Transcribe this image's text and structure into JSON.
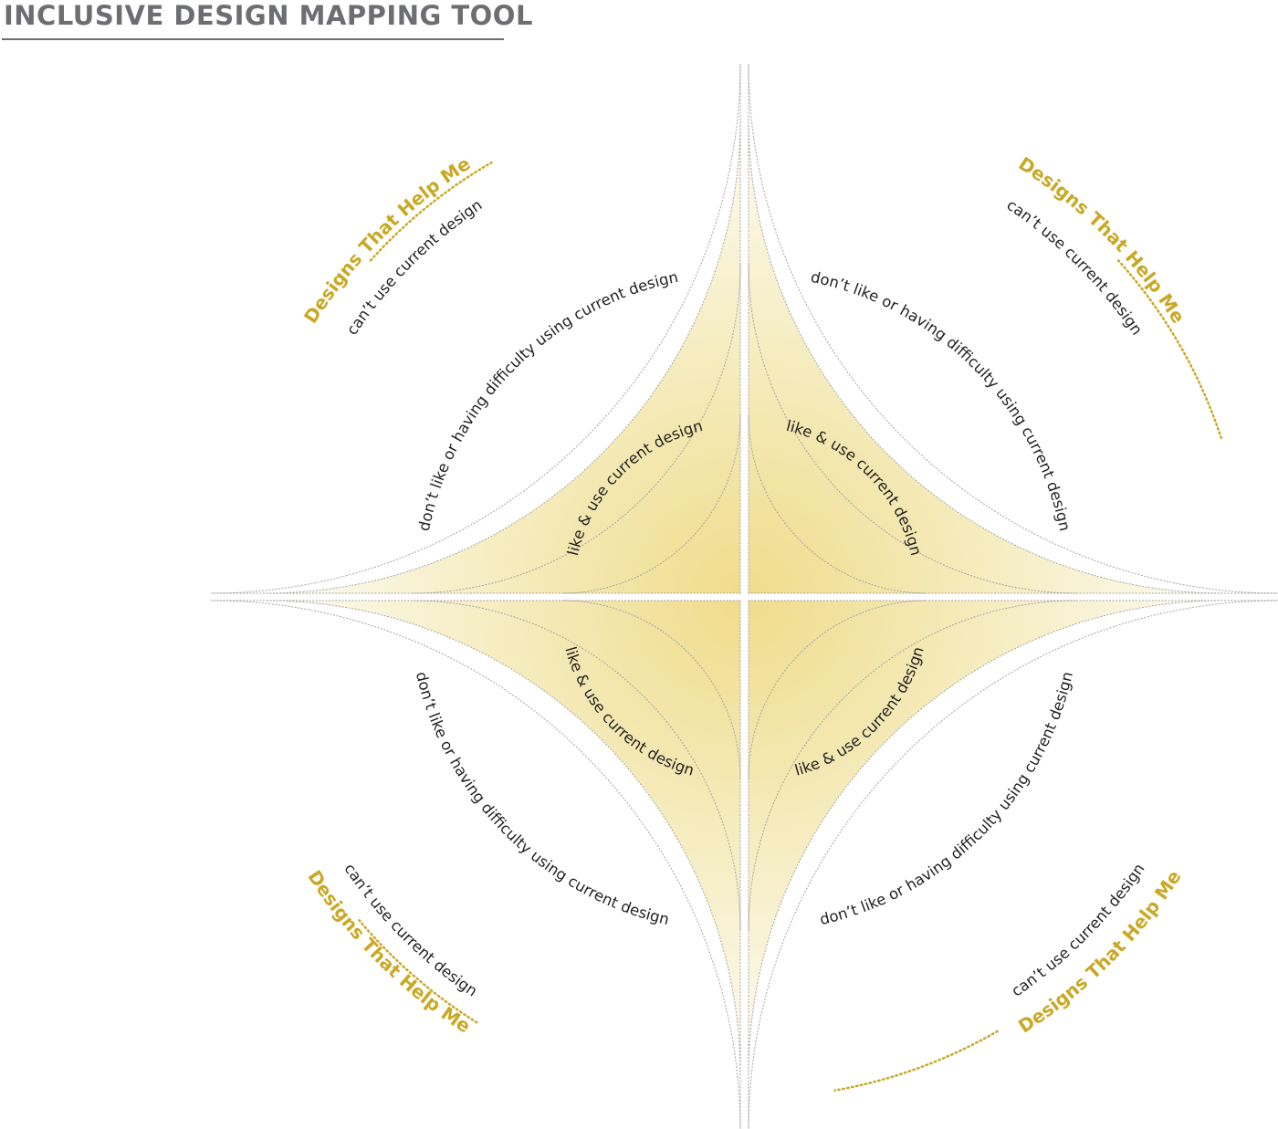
{
  "page": {
    "title": "INCLUSIVE DESIGN MAPPING TOOL"
  },
  "rings": {
    "inner": "like & use current design",
    "middle": "don’t like or having difficulty using current design",
    "outer": "can’t use current design",
    "help": "Designs That Help Me"
  },
  "colors": {
    "title": "#6d6e71",
    "accent": "#c9a825",
    "gradient_center": "#f0dc8c",
    "gradient_edge": "#fbf9ee",
    "dashed_line": "#9d9d9d"
  },
  "quadrants": [
    "top-left",
    "top-right",
    "bottom-left",
    "bottom-right"
  ]
}
